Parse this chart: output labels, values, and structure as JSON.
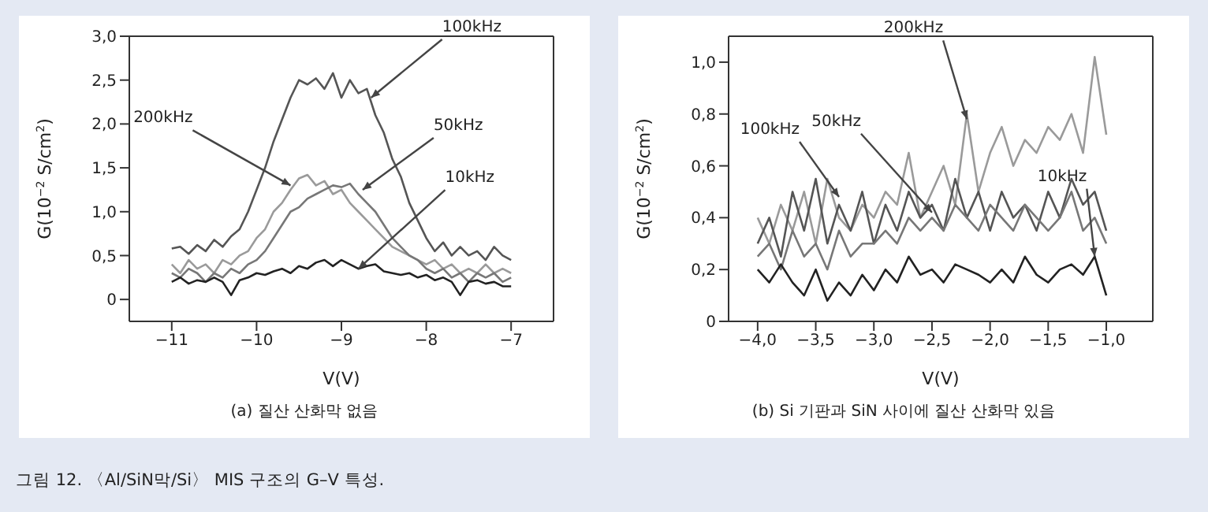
{
  "chart_data": [
    {
      "type": "line",
      "xlabel": "V(V)",
      "ylabel": "G(10$^{−2}$ S/cm$^{2}$)",
      "x": [
        -11,
        -10.9,
        -10.8,
        -10.7,
        -10.6,
        -10.5,
        -10.4,
        -10.3,
        -10.2,
        -10.1,
        -10,
        -9.9,
        -9.8,
        -9.7,
        -9.6,
        -9.5,
        -9.4,
        -9.3,
        -9.2,
        -9.1,
        -9,
        -8.9,
        -8.8,
        -8.7,
        -8.6,
        -8.5,
        -8.4,
        -8.3,
        -8.2,
        -8.1,
        -8,
        -7.9,
        -7.8,
        -7.7,
        -7.6,
        -7.5,
        -7.4,
        -7.3,
        -7.2,
        -7.1,
        -7
      ],
      "series": [
        {
          "color": "#555555",
          "values": [
            0.58,
            0.6,
            0.52,
            0.62,
            0.55,
            0.68,
            0.6,
            0.72,
            0.8,
            1.0,
            1.25,
            1.5,
            1.8,
            2.05,
            2.3,
            2.5,
            2.45,
            2.52,
            2.4,
            2.58,
            2.3,
            2.5,
            2.35,
            2.4,
            2.1,
            1.9,
            1.6,
            1.4,
            1.1,
            0.9,
            0.7,
            0.55,
            0.65,
            0.5,
            0.6,
            0.5,
            0.55,
            0.45,
            0.6,
            0.5,
            0.45
          ]
        },
        {
          "color": "#9a9a9a",
          "values": [
            0.4,
            0.3,
            0.45,
            0.35,
            0.4,
            0.3,
            0.45,
            0.4,
            0.5,
            0.55,
            0.7,
            0.8,
            1.0,
            1.1,
            1.25,
            1.38,
            1.42,
            1.3,
            1.35,
            1.2,
            1.25,
            1.1,
            1.0,
            0.9,
            0.8,
            0.7,
            0.6,
            0.55,
            0.5,
            0.45,
            0.4,
            0.45,
            0.35,
            0.4,
            0.3,
            0.35,
            0.3,
            0.4,
            0.3,
            0.35,
            0.3
          ]
        },
        {
          "color": "#777777",
          "values": [
            0.3,
            0.25,
            0.35,
            0.3,
            0.2,
            0.3,
            0.25,
            0.35,
            0.3,
            0.4,
            0.45,
            0.55,
            0.7,
            0.85,
            1.0,
            1.05,
            1.15,
            1.2,
            1.25,
            1.3,
            1.28,
            1.32,
            1.2,
            1.1,
            1.0,
            0.85,
            0.7,
            0.6,
            0.5,
            0.45,
            0.35,
            0.3,
            0.35,
            0.25,
            0.3,
            0.2,
            0.3,
            0.25,
            0.3,
            0.2,
            0.25
          ]
        },
        {
          "color": "#222222",
          "values": [
            0.2,
            0.25,
            0.18,
            0.22,
            0.2,
            0.25,
            0.2,
            0.05,
            0.22,
            0.25,
            0.3,
            0.28,
            0.32,
            0.35,
            0.3,
            0.38,
            0.35,
            0.42,
            0.45,
            0.38,
            0.45,
            0.4,
            0.35,
            0.38,
            0.4,
            0.32,
            0.3,
            0.28,
            0.3,
            0.25,
            0.28,
            0.22,
            0.25,
            0.2,
            0.05,
            0.2,
            0.22,
            0.18,
            0.2,
            0.15,
            0.15
          ]
        }
      ],
      "xlim": [
        -11.5,
        -6.5
      ],
      "xticks": [
        {
          "value": -11,
          "label": "−11"
        },
        {
          "value": -10,
          "label": "−10"
        },
        {
          "value": -9,
          "label": "−9"
        },
        {
          "value": -8,
          "label": "−8"
        },
        {
          "value": -7,
          "label": "−7"
        }
      ],
      "ylim": [
        -0.25,
        3.0
      ],
      "yticks": [
        0,
        {
          "value": 0.5,
          "label": "0,5"
        },
        {
          "value": 1,
          "label": "1,0"
        },
        {
          "value": 1.5,
          "label": "1,5"
        },
        {
          "value": 2,
          "label": "2,0"
        },
        {
          "value": 2.5,
          "label": "2,5"
        },
        {
          "value": 3,
          "label": "3,0"
        }
      ],
      "marker": "none",
      "line_style": "solid",
      "annotations": [
        {
          "text": "100kHz",
          "x": -8.65,
          "y": 2.3
        },
        {
          "text": "200kHz",
          "x": -9.6,
          "y": 1.3
        },
        {
          "text": "50kHz",
          "x": -8.75,
          "y": 1.25
        },
        {
          "text": "10kHz",
          "x": -8.8,
          "y": 0.35
        },
        "(a) 질산 산화막 없음",
        "그림 12. 〈Al/SiN막/Si〉 MIS 구조의 G–V 특성."
      ]
    },
    {
      "type": "line",
      "xlabel": "V(V)",
      "ylabel": "G(10$^{−2}$ S/cm$^{2}$)",
      "x": [
        -4,
        -3.9,
        -3.8,
        -3.7,
        -3.6,
        -3.5,
        -3.4,
        -3.3,
        -3.2,
        -3.1,
        -3,
        -2.9,
        -2.8,
        -2.7,
        -2.6,
        -2.5,
        -2.4,
        -2.3,
        -2.2,
        -2.1,
        -2,
        -1.9,
        -1.8,
        -1.7,
        -1.6,
        -1.5,
        -1.4,
        -1.3,
        -1.2,
        -1.1,
        -1
      ],
      "series": [
        {
          "color": "#9a9a9a",
          "values": [
            0.4,
            0.3,
            0.45,
            0.35,
            0.5,
            0.3,
            0.55,
            0.4,
            0.35,
            0.45,
            0.4,
            0.5,
            0.45,
            0.65,
            0.4,
            0.5,
            0.6,
            0.45,
            0.8,
            0.5,
            0.65,
            0.75,
            0.6,
            0.7,
            0.65,
            0.75,
            0.7,
            0.8,
            0.65,
            1.02,
            0.72
          ]
        },
        {
          "color": "#555555",
          "values": [
            0.3,
            0.4,
            0.25,
            0.5,
            0.35,
            0.55,
            0.3,
            0.45,
            0.35,
            0.5,
            0.3,
            0.45,
            0.35,
            0.5,
            0.4,
            0.45,
            0.35,
            0.55,
            0.4,
            0.5,
            0.35,
            0.5,
            0.4,
            0.45,
            0.35,
            0.5,
            0.4,
            0.55,
            0.45,
            0.5,
            0.35
          ]
        },
        {
          "color": "#777777",
          "values": [
            0.25,
            0.3,
            0.2,
            0.35,
            0.25,
            0.3,
            0.2,
            0.35,
            0.25,
            0.3,
            0.3,
            0.35,
            0.3,
            0.4,
            0.35,
            0.4,
            0.35,
            0.45,
            0.4,
            0.35,
            0.45,
            0.4,
            0.35,
            0.45,
            0.4,
            0.35,
            0.4,
            0.5,
            0.35,
            0.4,
            0.3
          ]
        },
        {
          "color": "#222222",
          "values": [
            0.2,
            0.15,
            0.22,
            0.15,
            0.1,
            0.2,
            0.08,
            0.15,
            0.1,
            0.18,
            0.12,
            0.2,
            0.15,
            0.25,
            0.18,
            0.2,
            0.15,
            0.22,
            0.2,
            0.18,
            0.15,
            0.2,
            0.15,
            0.25,
            0.18,
            0.15,
            0.2,
            0.22,
            0.18,
            0.25,
            0.1
          ]
        }
      ],
      "xlim": [
        -4.25,
        -0.6
      ],
      "xticks": [
        {
          "value": -4,
          "label": "−4,0"
        },
        {
          "value": -3.5,
          "label": "−3,5"
        },
        {
          "value": -3,
          "label": "−3,0"
        },
        {
          "value": -2.5,
          "label": "−2,5"
        },
        {
          "value": -2,
          "label": "−2,0"
        },
        {
          "value": -1.5,
          "label": "−1,5"
        },
        {
          "value": -1,
          "label": "−1,0"
        }
      ],
      "ylim": [
        0,
        1.1
      ],
      "yticks": [
        0,
        {
          "value": 0.2,
          "label": "0,2"
        },
        {
          "value": 0.4,
          "label": "0,4"
        },
        {
          "value": 0.6,
          "label": "0,6"
        },
        {
          "value": 0.8,
          "label": "0,8"
        },
        {
          "value": 1,
          "label": "1,0"
        }
      ],
      "marker": "none",
      "line_style": "solid",
      "annotations": [
        {
          "text": "200kHz",
          "x": -2.2,
          "y": 0.78
        },
        {
          "text": "50kHz",
          "x": -2.5,
          "y": 0.42
        },
        {
          "text": "100kHz",
          "x": -3.3,
          "y": 0.48
        },
        {
          "text": "10kHz",
          "x": -1.1,
          "y": 0.25
        },
        "(b) Si 기판과 SiN 사이에 질산 산화막 있음"
      ]
    }
  ]
}
